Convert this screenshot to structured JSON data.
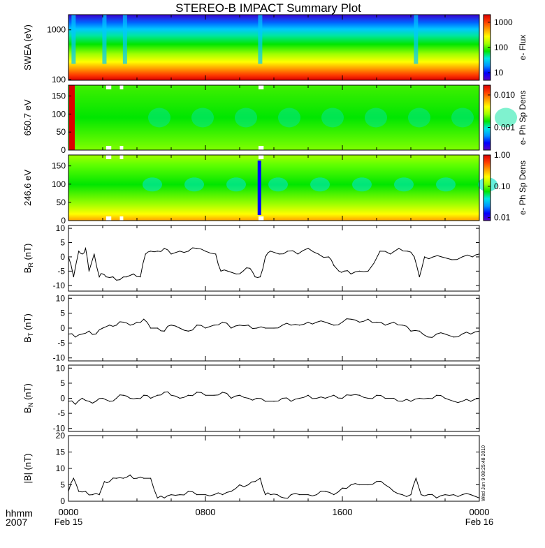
{
  "title": "STEREO-B IMPACT Summary Plot",
  "timestamp": "Wed Jun 9 08:25:48 2010",
  "time_axis": {
    "corner_labels": [
      "hhmm",
      "2007"
    ],
    "ticks": [
      {
        "hour": 0,
        "hhmm": "0000",
        "date": "Feb 15"
      },
      {
        "hour": 8,
        "hhmm": "0800",
        "date": ""
      },
      {
        "hour": 16,
        "hhmm": "1600",
        "date": ""
      },
      {
        "hour": 24,
        "hhmm": "0000",
        "date": "Feb 16"
      }
    ],
    "range_hours": [
      0,
      24
    ]
  },
  "colors": {
    "rainbow": [
      "#5a00c8",
      "#0000ff",
      "#0096ff",
      "#00e6e6",
      "#00e600",
      "#a0ff00",
      "#ffff00",
      "#ffa000",
      "#ff3c00",
      "#dc0000"
    ],
    "line": "#000000",
    "gap": "#ffffff"
  },
  "chart_data": [
    {
      "type": "heatmap",
      "name": "swea",
      "ylabel": "SWEA (eV)",
      "y_scale": "log",
      "ylim": [
        100,
        2000
      ],
      "yticks": [
        "100",
        "1000"
      ],
      "colorbar": {
        "label": "e- Flux",
        "scale": "log",
        "ticks": [
          "10",
          "100",
          "1000"
        ],
        "range": [
          5,
          2000
        ]
      },
      "description_of_levels": "high flux (red/orange) near 100 eV, falling through green to blue above 1000 eV",
      "dips_hours": [
        0.3,
        2.1,
        3.3,
        11.2,
        20.3
      ]
    },
    {
      "type": "heatmap",
      "name": "pad_650",
      "ylabel": "650.7 eV",
      "ylim": [
        0,
        180
      ],
      "yticks": [
        "0",
        "50",
        "100",
        "150"
      ],
      "colorbar": {
        "label": "e- Ph Sp Dens",
        "scale": "log",
        "ticks": [
          "0.001",
          "0.010"
        ],
        "range": [
          0.0002,
          0.02
        ]
      },
      "data_gaps_hours": [
        [
          2.2,
          2.5
        ],
        [
          3.0,
          3.2
        ],
        [
          11.1,
          11.4
        ]
      ]
    },
    {
      "type": "heatmap",
      "name": "pad_246",
      "ylabel": "246.6 eV",
      "ylim": [
        0,
        180
      ],
      "yticks": [
        "0",
        "50",
        "100",
        "150"
      ],
      "colorbar": {
        "label": "e- Ph Sp Dens",
        "scale": "log",
        "ticks": [
          "0.01",
          "0.10",
          "1.00"
        ],
        "range": [
          0.008,
          1.0
        ]
      },
      "data_gaps_hours": [
        [
          2.2,
          2.5
        ],
        [
          3.0,
          3.2
        ],
        [
          11.1,
          11.4
        ]
      ]
    },
    {
      "type": "line",
      "name": "br",
      "ylabel_main": "B",
      "ylabel_sub": "R",
      "ylabel_unit": " (nT)",
      "ylim": [
        -12,
        11
      ],
      "yticks": [
        -10,
        -5,
        0,
        5,
        10
      ],
      "x_hours": [
        0,
        0.3,
        0.6,
        0.8,
        1.0,
        1.2,
        1.5,
        1.8,
        2.0,
        2.2,
        2.6,
        3.0,
        3.4,
        3.8,
        4.2,
        4.5,
        4.8,
        5.2,
        5.6,
        6.0,
        6.5,
        7.0,
        7.5,
        8.0,
        8.6,
        8.9,
        9.3,
        9.8,
        10.2,
        10.6,
        10.9,
        11.2,
        11.5,
        11.8,
        12.3,
        12.8,
        13.4,
        14.0,
        14.6,
        15.2,
        15.5,
        15.8,
        16.1,
        16.5,
        17.0,
        17.5,
        18.2,
        18.8,
        19.3,
        19.8,
        20.2,
        20.5,
        20.8,
        21.3,
        21.8,
        22.4,
        23.0,
        23.6,
        24.0
      ],
      "y_nT": [
        0,
        -7,
        2,
        1,
        3,
        -5,
        1,
        -7,
        -6,
        -7,
        -7,
        -8,
        -7,
        -6,
        -7,
        1,
        2,
        2,
        3,
        1,
        2,
        2,
        3,
        2,
        1,
        -5,
        -5,
        -6,
        -5,
        -4,
        -7,
        -7,
        0,
        2,
        1,
        2,
        1,
        3,
        1,
        0,
        -3,
        -5,
        -5,
        -6,
        -5,
        -5,
        2,
        1,
        3,
        2,
        0,
        -7,
        0,
        0,
        0,
        -1,
        0,
        0,
        1
      ]
    },
    {
      "type": "line",
      "name": "bt",
      "ylabel_main": "B",
      "ylabel_sub": "T",
      "ylabel_unit": " (nT)",
      "ylim": [
        -11,
        11
      ],
      "yticks": [
        -10,
        -5,
        0,
        5,
        10
      ],
      "x_hours": [
        0,
        0.4,
        0.8,
        1.2,
        1.6,
        2.0,
        2.4,
        2.8,
        3.2,
        3.6,
        4.0,
        4.4,
        4.8,
        5.2,
        5.6,
        6.0,
        6.5,
        7.0,
        7.5,
        8.0,
        8.5,
        9.0,
        9.5,
        10.0,
        10.5,
        11.0,
        11.5,
        12.0,
        12.5,
        13.0,
        13.5,
        14.0,
        14.5,
        15.0,
        15.5,
        16.0,
        16.5,
        17.0,
        17.5,
        18.0,
        18.5,
        19.0,
        19.5,
        20.0,
        20.5,
        21.0,
        21.5,
        22.0,
        22.5,
        23.0,
        23.5,
        24.0
      ],
      "y_nT": [
        -2,
        -3,
        -2,
        -1,
        -2,
        0,
        1,
        1,
        2,
        1,
        2,
        3,
        0,
        0,
        -1,
        1,
        0,
        -1,
        1,
        0,
        1,
        2,
        0,
        1,
        1,
        0,
        0,
        0,
        1,
        1,
        1,
        2,
        2,
        2,
        1,
        2,
        3,
        2,
        3,
        2,
        1,
        2,
        1,
        -1,
        -1,
        -3,
        -2,
        -2,
        -3,
        -2,
        -2,
        -1
      ]
    },
    {
      "type": "line",
      "name": "bn",
      "ylabel_main": "B",
      "ylabel_sub": "N",
      "ylabel_unit": " (nT)",
      "ylim": [
        -11,
        11
      ],
      "yticks": [
        -10,
        -5,
        0,
        5,
        10
      ],
      "x_hours": [
        0,
        0.4,
        0.8,
        1.2,
        1.6,
        2.0,
        2.4,
        2.8,
        3.2,
        3.6,
        4.0,
        4.4,
        4.8,
        5.2,
        5.6,
        6.0,
        6.5,
        7.0,
        7.5,
        8.0,
        8.5,
        9.0,
        9.5,
        10.0,
        10.5,
        11.0,
        11.5,
        12.0,
        12.5,
        13.0,
        13.5,
        14.0,
        14.5,
        15.0,
        15.5,
        16.0,
        16.5,
        17.0,
        17.5,
        18.0,
        18.5,
        19.0,
        19.5,
        20.0,
        20.5,
        21.0,
        21.5,
        22.0,
        22.5,
        23.0,
        23.5,
        24.0
      ],
      "y_nT": [
        -1,
        -2,
        0,
        -1,
        -1,
        0,
        -1,
        0,
        1,
        0,
        0,
        1,
        0,
        1,
        2,
        1,
        0,
        1,
        2,
        1,
        1,
        2,
        0,
        1,
        0,
        0,
        -1,
        -1,
        0,
        -1,
        0,
        1,
        0,
        0,
        1,
        0,
        1,
        1,
        0,
        1,
        0,
        0,
        -1,
        -1,
        0,
        0,
        1,
        0,
        -1,
        -1,
        -1,
        0
      ]
    },
    {
      "type": "line",
      "name": "bmag",
      "ylabel_main": "|B|",
      "ylabel_sub": "",
      "ylabel_unit": " (nT)",
      "ylim": [
        0,
        20
      ],
      "yticks": [
        0,
        5,
        10,
        15,
        20
      ],
      "x_hours": [
        0,
        0.3,
        0.6,
        1.0,
        1.4,
        1.8,
        2.1,
        2.4,
        2.8,
        3.2,
        3.6,
        4.0,
        4.4,
        4.8,
        5.2,
        5.6,
        6.0,
        6.5,
        7.0,
        7.5,
        8.0,
        8.5,
        9.0,
        9.5,
        10.0,
        10.5,
        10.9,
        11.2,
        11.5,
        11.8,
        12.2,
        12.6,
        13.0,
        13.5,
        14.0,
        14.5,
        15.0,
        15.5,
        16.0,
        16.5,
        17.0,
        17.5,
        18.0,
        18.5,
        19.0,
        19.5,
        20.0,
        20.3,
        20.6,
        21.0,
        21.5,
        22.0,
        22.5,
        23.0,
        23.5,
        24.0
      ],
      "y_nT": [
        3,
        7,
        3,
        3,
        2,
        2,
        6,
        6,
        7,
        7,
        8,
        7,
        7,
        7,
        1,
        1,
        2,
        2,
        3,
        2,
        2,
        2,
        2,
        3,
        5,
        5,
        6,
        7,
        2,
        2,
        2,
        1,
        2,
        2,
        2,
        2,
        3,
        2,
        4,
        5,
        5,
        5,
        6,
        5,
        3,
        2,
        2,
        7,
        2,
        2,
        1,
        2,
        2,
        2,
        2,
        1
      ]
    }
  ]
}
